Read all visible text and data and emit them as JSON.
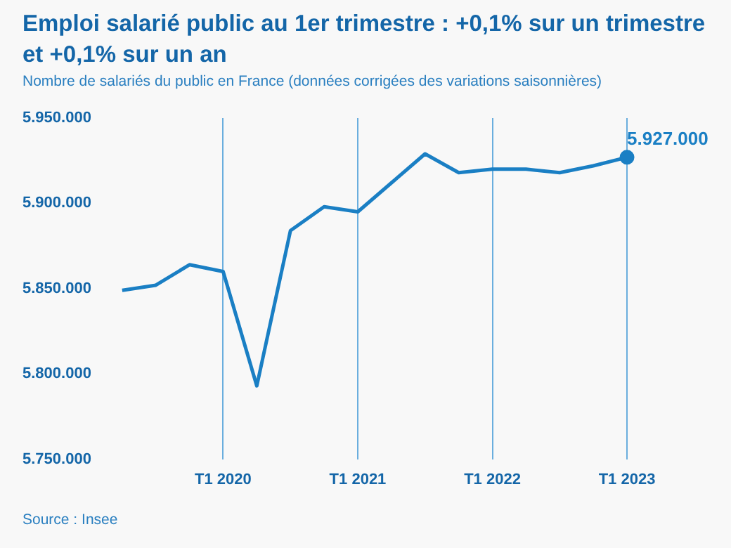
{
  "chart_data": {
    "type": "line",
    "title": "Emploi salarié public au 1er trimestre : +0,1% sur un trimestre et +0,1% sur un an",
    "subtitle": "Nombre de salariés du public en France (données corrigées des variations saisonnières)",
    "categories": [
      null,
      null,
      null,
      "T1 2020",
      null,
      null,
      null,
      "T1 2021",
      null,
      null,
      null,
      "T1 2022",
      null,
      null,
      null,
      "T1 2023"
    ],
    "series": [
      {
        "color": "#1a7fc4",
        "values": [
          5849000,
          5852000,
          5864000,
          5860000,
          5793000,
          5884000,
          5898000,
          5895000,
          5912000,
          5929000,
          5918000,
          5920000,
          5920000,
          5918000,
          5922000,
          5927000
        ]
      }
    ],
    "ylim": [
      5750000,
      5950000
    ],
    "yticks": [
      {
        "value": 5750000,
        "label": "5.750.000"
      },
      {
        "value": 5800000,
        "label": "5.800.000"
      },
      {
        "value": 5850000,
        "label": "5.850.000"
      },
      {
        "value": 5900000,
        "label": "5.900.000"
      },
      {
        "value": 5950000,
        "label": "5.950.000"
      }
    ],
    "grid": "x",
    "legend": false,
    "marker": "none",
    "line_style": "solid",
    "annotations": [
      {
        "text": "5.927.000",
        "x": "T1 2023",
        "y": 5927000
      },
      "Source : Insee"
    ]
  }
}
